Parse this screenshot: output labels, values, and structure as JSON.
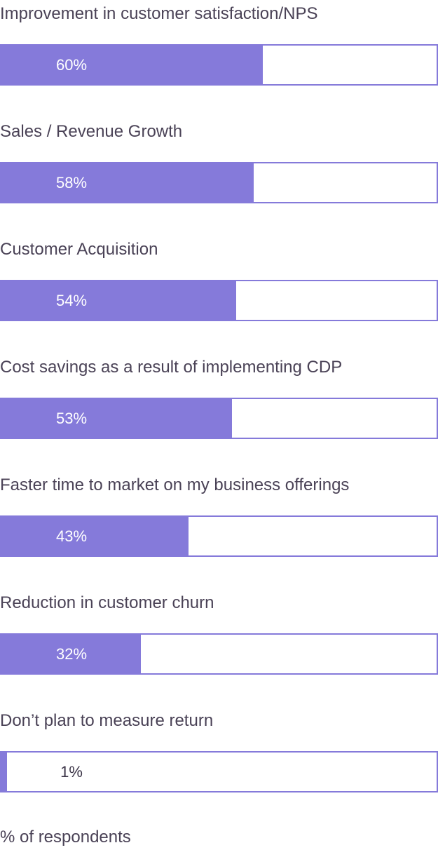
{
  "colors": {
    "bar": "#857ada",
    "text": "#4a4256",
    "track": "#ffffff"
  },
  "chart_data": {
    "type": "bar",
    "orientation": "horizontal",
    "categories": [
      "Improvement in customer satisfaction/NPS",
      "Sales / Revenue Growth",
      "Customer Acquisition",
      "Cost savings as a result of implementing CDP",
      "Faster time to market on my business offerings",
      "Reduction in customer churn",
      "Don’t plan to measure return"
    ],
    "values": [
      60,
      58,
      54,
      53,
      43,
      32,
      1
    ],
    "value_labels": [
      "60%",
      "58%",
      "54%",
      "53%",
      "43%",
      "32%",
      "1%"
    ],
    "xlim": [
      0,
      100
    ],
    "xlabel": "% of respondents",
    "grid": false
  }
}
